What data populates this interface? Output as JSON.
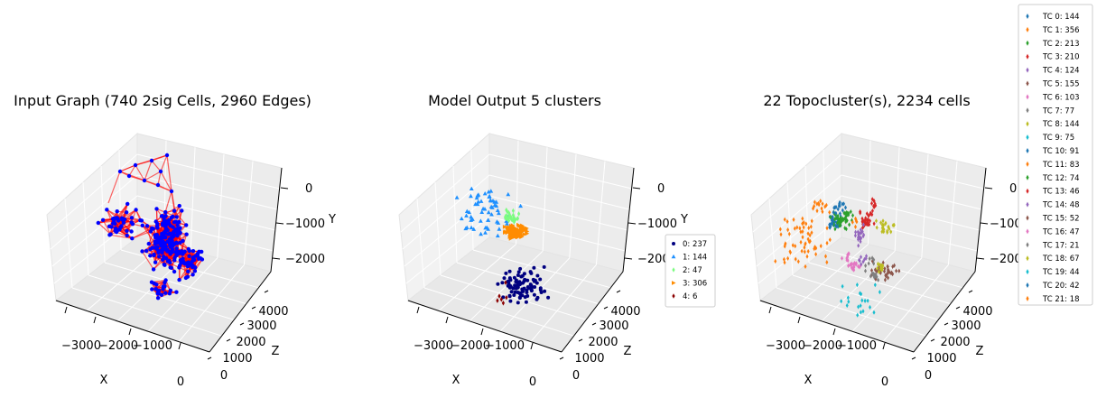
{
  "chart_data": [
    {
      "type": "scatter3d",
      "title": "Input Graph (740 2sig Cells, 2960 Edges)",
      "xlabel": "X",
      "ylabel": "Y",
      "zlabel": "Z",
      "xticks": [
        "−3000",
        "−2000",
        "−1000",
        "0"
      ],
      "yticks": [
        "0",
        "−1000",
        "−2000"
      ],
      "zticks": [
        "0",
        "1000",
        "2000",
        "3000",
        "4000"
      ],
      "xlim": [
        -3500,
        300
      ],
      "ylim": [
        -2600,
        300
      ],
      "zlim": [
        0,
        4500
      ],
      "grid": true,
      "node_color": "#0000ff",
      "edge_color": "#ff0000"
    },
    {
      "type": "scatter3d",
      "title": "Model Output 5 clusters",
      "xlabel": "X",
      "ylabel": "Y",
      "zlabel": "Z",
      "xticks": [
        "−3000",
        "−2000",
        "−1000",
        "0"
      ],
      "yticks": [
        "0",
        "−1000",
        "−2000"
      ],
      "zticks": [
        "0",
        "1000",
        "2000",
        "3000",
        "4000"
      ],
      "grid": true,
      "legend_position": "right",
      "series": [
        {
          "name": "0: 237",
          "count": 237,
          "color": "#000080",
          "marker": "circle"
        },
        {
          "name": "1: 144",
          "count": 144,
          "color": "#1e90ff",
          "marker": "triangle"
        },
        {
          "name": "2: 47",
          "count": 47,
          "color": "#7cfc80",
          "marker": "diamond"
        },
        {
          "name": "3: 306",
          "count": 306,
          "color": "#ff8c00",
          "marker": "triangle-right"
        },
        {
          "name": "4: 6",
          "count": 6,
          "color": "#8b0000",
          "marker": "diamond"
        }
      ]
    },
    {
      "type": "scatter3d",
      "title": "22 Topocluster(s), 2234 cells",
      "xlabel": "X",
      "ylabel": "Y",
      "zlabel": "Z",
      "xticks": [
        "−3000",
        "−2000",
        "−1000",
        "0"
      ],
      "yticks": [
        "0",
        "−1000",
        "−2000"
      ],
      "zticks": [
        "0",
        "1000",
        "2000",
        "3000",
        "4000"
      ],
      "grid": true,
      "legend_position": "upper right outside",
      "series": [
        {
          "name": "TC 0: 144",
          "count": 144,
          "color": "#1f77b4"
        },
        {
          "name": "TC 1: 356",
          "count": 356,
          "color": "#ff7f0e"
        },
        {
          "name": "TC 2: 213",
          "count": 213,
          "color": "#2ca02c"
        },
        {
          "name": "TC 3: 210",
          "count": 210,
          "color": "#d62728"
        },
        {
          "name": "TC 4: 124",
          "count": 124,
          "color": "#9467bd"
        },
        {
          "name": "TC 5: 155",
          "count": 155,
          "color": "#8c564b"
        },
        {
          "name": "TC 6: 103",
          "count": 103,
          "color": "#e377c2"
        },
        {
          "name": "TC 7: 77",
          "count": 77,
          "color": "#7f7f7f"
        },
        {
          "name": "TC 8: 144",
          "count": 144,
          "color": "#bcbd22"
        },
        {
          "name": "TC 9: 75",
          "count": 75,
          "color": "#17becf"
        },
        {
          "name": "TC 10: 91",
          "count": 91,
          "color": "#1f77b4"
        },
        {
          "name": "TC 11: 83",
          "count": 83,
          "color": "#ff7f0e"
        },
        {
          "name": "TC 12: 74",
          "count": 74,
          "color": "#2ca02c"
        },
        {
          "name": "TC 13: 46",
          "count": 46,
          "color": "#d62728"
        },
        {
          "name": "TC 14: 48",
          "count": 48,
          "color": "#9467bd"
        },
        {
          "name": "TC 15: 52",
          "count": 52,
          "color": "#8c564b"
        },
        {
          "name": "TC 16: 47",
          "count": 47,
          "color": "#e377c2"
        },
        {
          "name": "TC 17: 21",
          "count": 21,
          "color": "#7f7f7f"
        },
        {
          "name": "TC 18: 67",
          "count": 67,
          "color": "#bcbd22"
        },
        {
          "name": "TC 19: 44",
          "count": 44,
          "color": "#17becf"
        },
        {
          "name": "TC 20: 42",
          "count": 42,
          "color": "#1f77b4"
        },
        {
          "name": "TC 21: 18",
          "count": 18,
          "color": "#ff7f0e"
        }
      ]
    }
  ]
}
